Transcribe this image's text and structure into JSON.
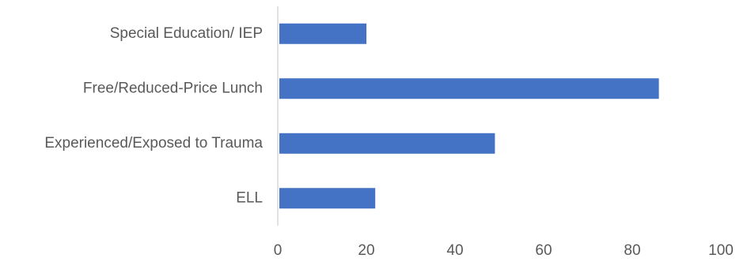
{
  "chart_data": {
    "type": "bar",
    "orientation": "horizontal",
    "categories": [
      "Special Education/ IEP",
      "Free/Reduced-Price Lunch",
      "Experienced/Exposed to Trauma",
      "ELL"
    ],
    "values": [
      20,
      86,
      49,
      22
    ],
    "xlim": [
      0,
      100
    ],
    "xticks": [
      "0",
      "20",
      "40",
      "60",
      "80",
      "100"
    ],
    "title": "",
    "xlabel": "",
    "ylabel": "",
    "grid": false,
    "legend": "none",
    "bar_color": "#4472C4"
  }
}
